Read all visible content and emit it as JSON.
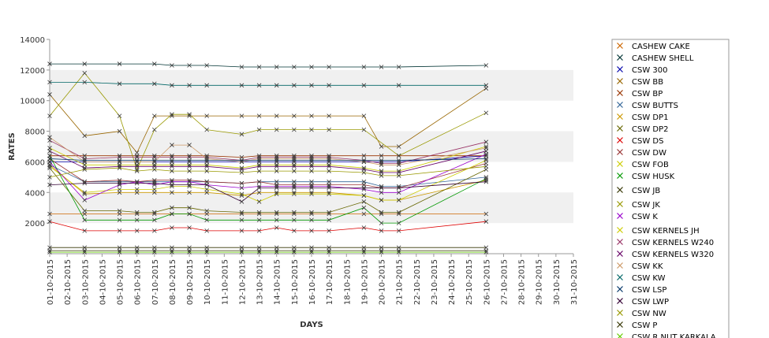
{
  "chart_data": {
    "type": "line",
    "xlabel": "DAYS",
    "ylabel": "RATES",
    "ylim": [
      0,
      14000
    ],
    "yticks": [
      2000,
      4000,
      6000,
      8000,
      10000,
      12000,
      14000
    ],
    "grid": "alternating horizontal bands",
    "legend_position": "right",
    "categories": [
      "01-10-2015",
      "02-10-2015",
      "03-10-2015",
      "04-10-2015",
      "05-10-2015",
      "06-10-2015",
      "07-10-2015",
      "08-10-2015",
      "09-10-2015",
      "10-10-2015",
      "11-10-2015",
      "12-10-2015",
      "13-10-2015",
      "14-10-2015",
      "15-10-2015",
      "16-10-2015",
      "17-10-2015",
      "18-10-2015",
      "19-10-2015",
      "20-10-2015",
      "21-10-2015",
      "22-10-2015",
      "23-10-2015",
      "24-10-2015",
      "25-10-2015",
      "26-10-2015",
      "27-10-2015",
      "28-10-2015",
      "29-10-2015",
      "30-10-2015",
      "31-10-2015"
    ],
    "series": [
      {
        "name": "CASHEW CAKE",
        "color": "#cc6600",
        "values": [
          2600,
          null,
          2600,
          null,
          2600,
          2600,
          2600,
          2600,
          2600,
          2600,
          null,
          2600,
          2600,
          2600,
          2600,
          2600,
          2600,
          null,
          2600,
          2600,
          2600,
          null,
          null,
          null,
          null,
          2600,
          null,
          null,
          null,
          null,
          null
        ]
      },
      {
        "name": "CASHEW SHELL",
        "color": "#003333",
        "values": [
          12400,
          null,
          12400,
          null,
          12400,
          null,
          12400,
          12300,
          12300,
          12300,
          null,
          12200,
          12200,
          12200,
          12200,
          12200,
          12200,
          null,
          12200,
          12200,
          12200,
          null,
          null,
          null,
          null,
          12300,
          null,
          null,
          null,
          null,
          null
        ]
      },
      {
        "name": "CSW 300",
        "color": "#0000aa",
        "values": [
          6000,
          null,
          6000,
          null,
          6000,
          6000,
          6000,
          6000,
          6000,
          6000,
          null,
          6000,
          6000,
          6000,
          6000,
          6000,
          6000,
          null,
          6000,
          6000,
          6000,
          null,
          null,
          null,
          null,
          6400,
          null,
          null,
          null,
          null,
          null
        ]
      },
      {
        "name": "CSW BB",
        "color": "#996600",
        "values": [
          10400,
          null,
          7700,
          null,
          8000,
          6600,
          9000,
          9000,
          9000,
          9000,
          null,
          9000,
          9000,
          9000,
          9000,
          9000,
          9000,
          null,
          9000,
          7000,
          7000,
          null,
          null,
          null,
          null,
          10800,
          null,
          null,
          null,
          null,
          null
        ]
      },
      {
        "name": "CSW BP",
        "color": "#993300",
        "values": [
          6400,
          null,
          6400,
          null,
          6400,
          6400,
          6400,
          6400,
          6400,
          6400,
          null,
          6300,
          6400,
          6400,
          6400,
          6400,
          6400,
          null,
          6400,
          6400,
          6400,
          null,
          null,
          null,
          null,
          6400,
          null,
          null,
          null,
          null,
          null
        ]
      },
      {
        "name": "CSW BUTTS",
        "color": "#336699",
        "values": [
          5800,
          null,
          4700,
          null,
          4700,
          4700,
          4700,
          4700,
          4700,
          4700,
          null,
          4600,
          4700,
          4700,
          4700,
          4700,
          4700,
          null,
          4700,
          4400,
          4400,
          null,
          null,
          null,
          null,
          5000,
          null,
          null,
          null,
          null,
          null
        ]
      },
      {
        "name": "CSW DP1",
        "color": "#cc9900",
        "values": [
          5800,
          null,
          3900,
          null,
          4000,
          4000,
          4000,
          4000,
          4000,
          4000,
          null,
          3800,
          4000,
          4000,
          4000,
          4000,
          4000,
          null,
          3800,
          3500,
          3500,
          null,
          null,
          null,
          null,
          4800,
          null,
          null,
          null,
          null,
          null
        ]
      },
      {
        "name": "CSW DP2",
        "color": "#666600",
        "values": [
          5600,
          null,
          2800,
          null,
          2800,
          2700,
          2700,
          3000,
          3000,
          2800,
          null,
          2700,
          2700,
          2700,
          2700,
          2700,
          2700,
          null,
          3400,
          2700,
          2700,
          null,
          null,
          null,
          null,
          5500,
          null,
          null,
          null,
          null,
          null
        ]
      },
      {
        "name": "CSW DS",
        "color": "#dd0000",
        "values": [
          2100,
          null,
          1500,
          null,
          1500,
          1500,
          1500,
          1700,
          1700,
          1500,
          null,
          1500,
          1500,
          1700,
          1500,
          1500,
          1500,
          null,
          1700,
          1500,
          1500,
          null,
          null,
          null,
          null,
          2100,
          null,
          null,
          null,
          null,
          null
        ]
      },
      {
        "name": "CSW DW",
        "color": "#993333",
        "values": [
          6200,
          null,
          4700,
          null,
          4800,
          4700,
          4800,
          4800,
          4800,
          4700,
          null,
          4600,
          4700,
          4500,
          4500,
          4500,
          4500,
          null,
          4500,
          4300,
          4300,
          null,
          null,
          null,
          null,
          5900,
          null,
          null,
          null,
          null,
          null
        ]
      },
      {
        "name": "CSW FOB",
        "color": "#cccc00",
        "values": [
          5700,
          null,
          4000,
          null,
          4200,
          4200,
          4200,
          4400,
          4400,
          4200,
          null,
          3900,
          3400,
          3900,
          3900,
          3900,
          3900,
          null,
          3800,
          3500,
          3500,
          null,
          null,
          null,
          null,
          6100,
          null,
          null,
          null,
          null,
          null
        ]
      },
      {
        "name": "CSW HUSK",
        "color": "#009900",
        "values": [
          6400,
          null,
          2200,
          null,
          2200,
          2200,
          2200,
          2600,
          2600,
          2200,
          null,
          2200,
          2200,
          2200,
          2200,
          2200,
          2200,
          null,
          3000,
          2000,
          2000,
          null,
          null,
          null,
          null,
          4900,
          null,
          null,
          null,
          null,
          null
        ]
      },
      {
        "name": "CSW JB",
        "color": "#333300",
        "values": [
          400,
          null,
          400,
          null,
          400,
          400,
          400,
          400,
          400,
          400,
          null,
          400,
          400,
          400,
          400,
          400,
          400,
          null,
          400,
          400,
          400,
          null,
          null,
          null,
          null,
          400,
          null,
          null,
          null,
          null,
          null
        ]
      },
      {
        "name": "CSW JK",
        "color": "#999900",
        "values": [
          9000,
          null,
          11800,
          null,
          9000,
          5500,
          8100,
          9100,
          9100,
          8100,
          null,
          7800,
          8100,
          8100,
          8100,
          8100,
          8100,
          null,
          8100,
          null,
          6400,
          null,
          null,
          null,
          null,
          9200,
          null,
          null,
          null,
          null,
          null
        ]
      },
      {
        "name": "CSW K",
        "color": "#9900cc",
        "values": [
          6000,
          null,
          3500,
          null,
          4500,
          4700,
          4500,
          4700,
          4700,
          4500,
          null,
          4300,
          4400,
          4400,
          4400,
          4400,
          4400,
          null,
          4200,
          4000,
          4000,
          null,
          null,
          null,
          null,
          6500,
          null,
          null,
          null,
          null,
          null
        ]
      },
      {
        "name": "CSW KERNELS JH",
        "color": "#cccc00",
        "values": [
          6900,
          null,
          5800,
          null,
          5800,
          5800,
          5800,
          5800,
          5800,
          5800,
          null,
          5600,
          5800,
          5800,
          5800,
          5800,
          5800,
          null,
          5600,
          5400,
          5400,
          null,
          null,
          null,
          null,
          7000,
          null,
          null,
          null,
          null,
          null
        ]
      },
      {
        "name": "CSW KERNELS W240",
        "color": "#993366",
        "values": [
          7400,
          null,
          6200,
          null,
          6300,
          6300,
          6300,
          6300,
          6300,
          6300,
          null,
          6100,
          6300,
          6300,
          6300,
          6300,
          6300,
          null,
          6100,
          5900,
          5900,
          null,
          null,
          null,
          null,
          7300,
          null,
          null,
          null,
          null,
          null
        ]
      },
      {
        "name": "CSW KERNELS W320",
        "color": "#660066",
        "values": [
          6700,
          null,
          5600,
          null,
          5700,
          5700,
          5700,
          5700,
          5700,
          5700,
          null,
          5500,
          5700,
          5700,
          5700,
          5700,
          5700,
          null,
          5500,
          5300,
          5300,
          null,
          null,
          null,
          null,
          6700,
          null,
          null,
          null,
          null,
          null
        ]
      },
      {
        "name": "CSW KK",
        "color": "#cc9966",
        "values": [
          7600,
          null,
          6000,
          null,
          6000,
          6000,
          6000,
          7100,
          7100,
          6200,
          null,
          6000,
          6200,
          6200,
          6200,
          6200,
          6200,
          null,
          6000,
          5800,
          5800,
          null,
          null,
          null,
          null,
          6900,
          null,
          null,
          null,
          null,
          null
        ]
      },
      {
        "name": "CSW KW",
        "color": "#006666",
        "values": [
          11200,
          null,
          11200,
          null,
          11100,
          null,
          11100,
          11000,
          11000,
          11000,
          null,
          11000,
          11000,
          11000,
          11000,
          11000,
          11000,
          null,
          11000,
          null,
          11000,
          null,
          null,
          null,
          null,
          11000,
          null,
          null,
          null,
          null,
          null
        ]
      },
      {
        "name": "CSW LSP",
        "color": "#003366",
        "values": [
          6200,
          null,
          6100,
          null,
          6100,
          6100,
          6100,
          6100,
          6100,
          6100,
          null,
          6100,
          6100,
          6100,
          6100,
          6100,
          6100,
          null,
          6100,
          6100,
          6100,
          null,
          null,
          null,
          null,
          6200,
          null,
          null,
          null,
          null,
          null
        ]
      },
      {
        "name": "CSW LWP",
        "color": "#330033",
        "values": [
          4500,
          null,
          4600,
          null,
          4600,
          4600,
          4600,
          4500,
          4500,
          4500,
          null,
          3400,
          4300,
          4300,
          4300,
          4300,
          4300,
          null,
          4300,
          4300,
          4300,
          null,
          null,
          null,
          null,
          4700,
          null,
          null,
          null,
          null,
          null
        ]
      },
      {
        "name": "CSW NW",
        "color": "#999900",
        "values": [
          5000,
          null,
          5500,
          null,
          5600,
          5400,
          5500,
          5400,
          5400,
          5400,
          null,
          5300,
          5400,
          5400,
          5400,
          5400,
          5400,
          null,
          5300,
          5100,
          5100,
          null,
          null,
          null,
          null,
          5700,
          null,
          null,
          null,
          null,
          null
        ]
      },
      {
        "name": "CSW P",
        "color": "#333300",
        "values": [
          200,
          null,
          200,
          null,
          200,
          200,
          200,
          200,
          200,
          200,
          null,
          200,
          200,
          200,
          200,
          200,
          200,
          null,
          200,
          200,
          200,
          null,
          null,
          null,
          null,
          200,
          null,
          null,
          null,
          null,
          null
        ]
      },
      {
        "name": "CSW R NUT KARKALA",
        "color": "#66cc00",
        "values": [
          100,
          null,
          100,
          null,
          100,
          100,
          100,
          100,
          100,
          100,
          null,
          100,
          100,
          100,
          100,
          100,
          100,
          null,
          100,
          100,
          100,
          null,
          null,
          null,
          null,
          100,
          null,
          null,
          null,
          null,
          null
        ]
      }
    ]
  }
}
